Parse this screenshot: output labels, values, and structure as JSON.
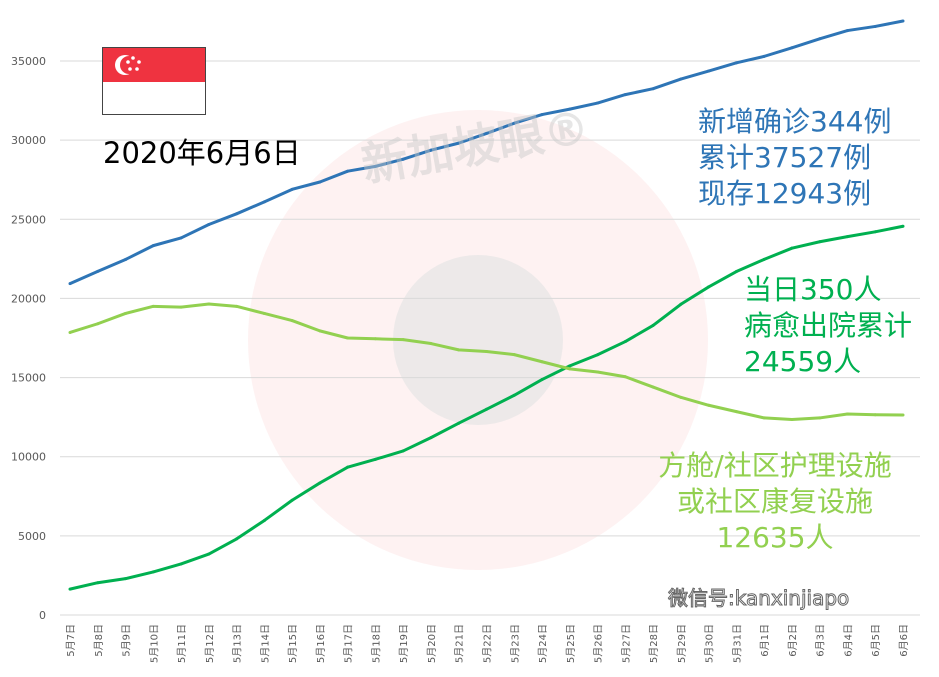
{
  "title": "2020年6月6日",
  "watermark": "新加坡眼®",
  "wechat_label": "微信号:kanxinjiapo",
  "annotations": {
    "total": [
      "新增确诊344例",
      "累计37527例",
      "现存12943例"
    ],
    "recovered": [
      "当日350人",
      "病愈出院累计",
      "24559人"
    ],
    "community": [
      "方舱/社区护理设施",
      "或社区康复设施",
      "12635人"
    ]
  },
  "chart_data": {
    "type": "line",
    "title": "",
    "xlabel": "",
    "ylabel": "",
    "ylim": [
      0,
      35000
    ],
    "yticks": [
      "0",
      "5000",
      "10000",
      "15000",
      "20000",
      "25000",
      "30000",
      "35000"
    ],
    "grid": true,
    "categories": [
      "5月7日",
      "5月8日",
      "5月9日",
      "5月10日",
      "5月11日",
      "5月12日",
      "5月13日",
      "5月14日",
      "5月15日",
      "5月16日",
      "5月17日",
      "5月18日",
      "5月19日",
      "5月20日",
      "5月21日",
      "5月22日",
      "5月23日",
      "5月24日",
      "5月25日",
      "5月26日",
      "5月27日",
      "5月28日",
      "5月29日",
      "5月30日",
      "5月31日",
      "6月1日",
      "6月2日",
      "6月3日",
      "6月4日",
      "6月5日",
      "6月6日"
    ],
    "series": [
      {
        "color": "#2e75b6",
        "values": [
          20939,
          21707,
          22460,
          23336,
          23822,
          24671,
          25346,
          26098,
          26891,
          27356,
          28038,
          28343,
          28794,
          29364,
          29812,
          30426,
          31068,
          31616,
          31960,
          32343,
          32876,
          33249,
          33860,
          34366,
          34884,
          35292,
          35836,
          36405,
          36922,
          37183,
          37527
        ]
      },
      {
        "color": "#00b050",
        "values": [
          1634,
          2040,
          2296,
          2721,
          3225,
          3851,
          4809,
          5973,
          7248,
          8342,
          9340,
          9835,
          10365,
          11207,
          12117,
          12995,
          13882,
          14876,
          15738,
          16444,
          17276,
          18294,
          19631,
          20727,
          21699,
          22466,
          23175,
          23582,
          23904,
          24209,
          24559
        ]
      },
      {
        "color": "#92d050",
        "values": [
          17850,
          18400,
          19050,
          19500,
          19450,
          19650,
          19500,
          19050,
          18600,
          17950,
          17500,
          17450,
          17400,
          17150,
          16750,
          16650,
          16450,
          16000,
          15550,
          15350,
          15050,
          14400,
          13750,
          13250,
          12850,
          12450,
          12350,
          12450,
          12700,
          12650,
          12635
        ]
      }
    ]
  },
  "colors": {
    "flag_red": "#ef3340"
  }
}
